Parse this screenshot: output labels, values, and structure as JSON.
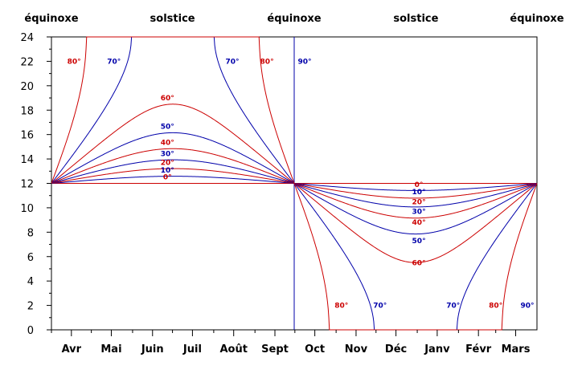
{
  "chart_data": {
    "type": "line",
    "title": "",
    "xlabel": "",
    "ylabel": "",
    "ylim": [
      0,
      24
    ],
    "yticks": [
      0,
      2,
      4,
      6,
      8,
      10,
      12,
      14,
      16,
      18,
      20,
      22,
      24
    ],
    "ytick_labels": [
      "0",
      "2",
      "4",
      "6",
      "8",
      "10",
      "12",
      "14",
      "16",
      "18",
      "20",
      "22",
      "24"
    ],
    "xlim_days": [
      0,
      365
    ],
    "month_ticks": [
      {
        "label": "Avr",
        "day": 0
      },
      {
        "label": "Mai",
        "day": 30
      },
      {
        "label": "Juin",
        "day": 61
      },
      {
        "label": "Juil",
        "day": 91
      },
      {
        "label": "Août",
        "day": 122
      },
      {
        "label": "Sept",
        "day": 153
      },
      {
        "label": "Oct",
        "day": 183
      },
      {
        "label": "Nov",
        "day": 214
      },
      {
        "label": "Déc",
        "day": 244
      },
      {
        "label": "Janv",
        "day": 275
      },
      {
        "label": "Févr",
        "day": 306
      },
      {
        "label": "Mars",
        "day": 334
      }
    ],
    "top_labels": [
      {
        "label": "équinoxe",
        "day": 0
      },
      {
        "label": "solstice",
        "day": 91
      },
      {
        "label": "équinoxe",
        "day": 182.5
      },
      {
        "label": "solstice",
        "day": 274
      },
      {
        "label": "équinoxe",
        "day": 365
      }
    ],
    "series": [
      {
        "name": "0°",
        "color": "#cc0000",
        "latitude": 0,
        "summer_label_day": 92,
        "winter_label_day": 275,
        "winter_label_hours": 11.9
      },
      {
        "name": "10°",
        "color": "#0000aa",
        "latitude": 10,
        "summer_label_day": 92,
        "winter_label_day": 275,
        "winter_label_hours": 11.3
      },
      {
        "name": "20°",
        "color": "#cc0000",
        "latitude": 20,
        "summer_label_day": 92,
        "winter_label_day": 275,
        "winter_label_hours": 10.5
      },
      {
        "name": "30°",
        "color": "#0000aa",
        "latitude": 30,
        "summer_label_day": 92,
        "winter_label_day": 275,
        "winter_label_hours": 9.7
      },
      {
        "name": "40°",
        "color": "#cc0000",
        "latitude": 40,
        "summer_label_day": 92,
        "winter_label_day": 275,
        "winter_label_hours": 8.8
      },
      {
        "name": "50°",
        "color": "#0000aa",
        "latitude": 50,
        "summer_label_day": 92,
        "winter_label_day": 275,
        "winter_label_hours": 7.3
      },
      {
        "name": "60°",
        "color": "#cc0000",
        "latitude": 60,
        "summer_label_day": 92,
        "winter_label_day": 275,
        "winter_label_hours": 5.5
      },
      {
        "name": "70°",
        "color": "#0000aa",
        "latitude": 70,
        "label_hours": 22,
        "summer_label_days": [
          47,
          136
        ],
        "winter_label_days": [
          247,
          302
        ]
      },
      {
        "name": "80°",
        "color": "#cc0000",
        "latitude": 80,
        "label_hours": 22,
        "summer_label_days": [
          17,
          162
        ],
        "winter_label_days": [
          218,
          334
        ]
      },
      {
        "name": "90°",
        "color": "#0000aa",
        "latitude": 90,
        "label_hours": 22,
        "summer_label_days": [
          182.5
        ],
        "winter_label_days": [
          365
        ]
      }
    ]
  }
}
